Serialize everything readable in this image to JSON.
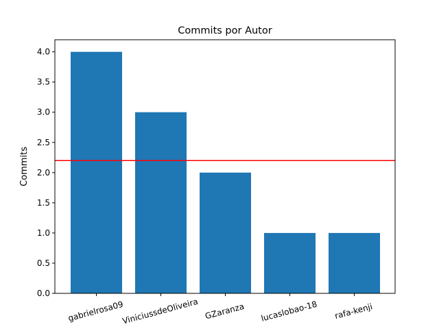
{
  "chart_data": {
    "type": "bar",
    "title": "Commits por Autor",
    "xlabel": "",
    "ylabel": "Commits",
    "categories": [
      "gabrielrosa09",
      "ViniciussdeOliveira",
      "GZaranza",
      "lucaslobao-18",
      "rafa-kenji"
    ],
    "values": [
      4,
      3,
      2,
      1,
      1
    ],
    "ylim": [
      0,
      4.2
    ],
    "yticks": [
      "0.0",
      "0.5",
      "1.0",
      "1.5",
      "2.0",
      "2.5",
      "3.0",
      "3.5",
      "4.0"
    ],
    "reference_line": {
      "y": 2.2,
      "color": "#ff0000"
    },
    "bar_color": "#1f77b4",
    "grid": false,
    "xtick_rotation": "slight"
  }
}
